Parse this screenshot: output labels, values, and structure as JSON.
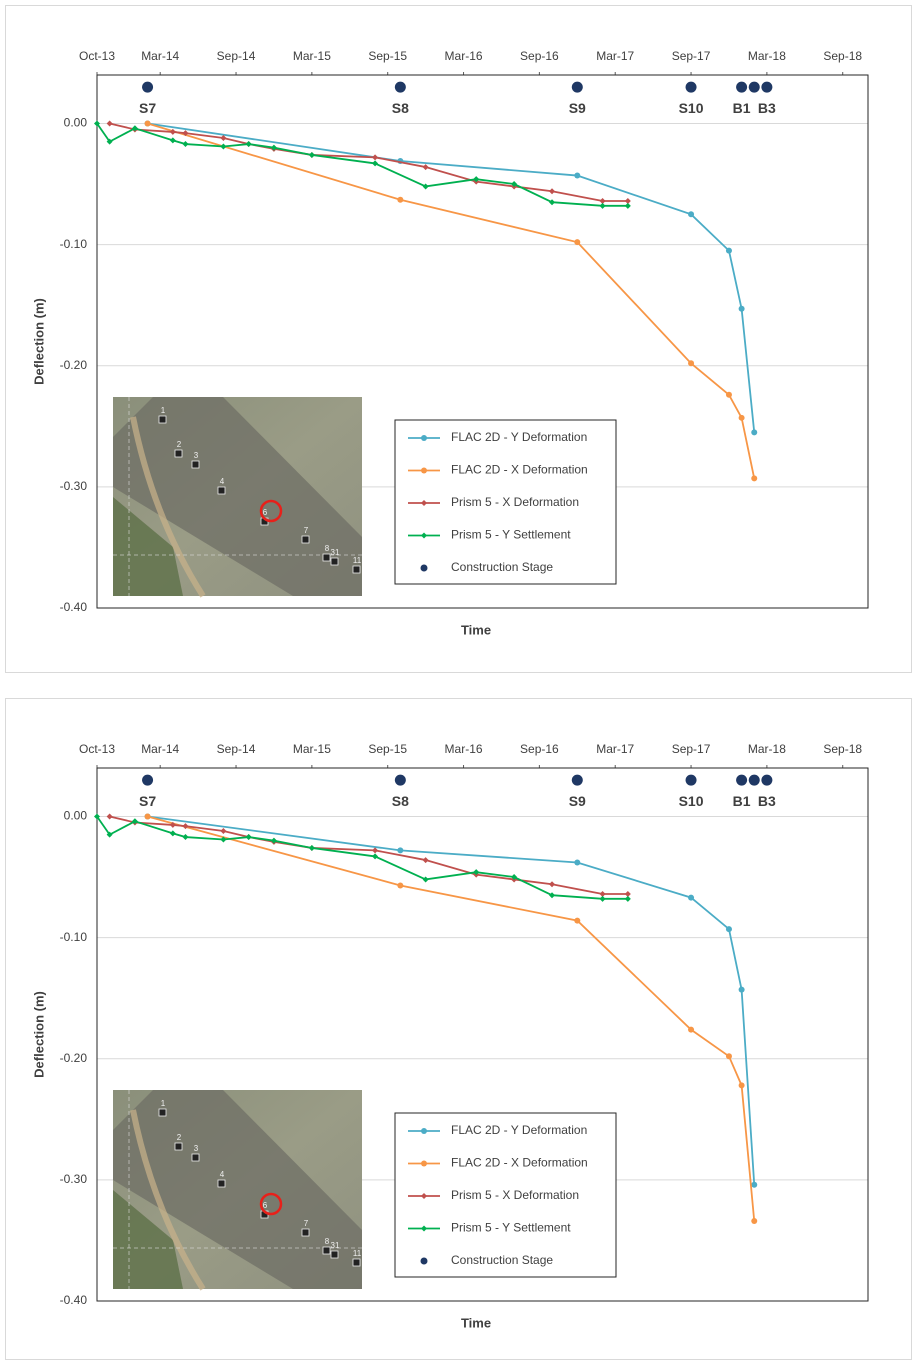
{
  "chart_data": [
    {
      "type": "line",
      "xlabel": "Time",
      "ylabel": "Deflection (m)",
      "xlim": [
        "2013-10",
        "2018-11"
      ],
      "xticks": [
        {
          "value": "2013-10",
          "label": "Oct-13"
        },
        {
          "value": "2014-03",
          "label": "Mar-14"
        },
        {
          "value": "2014-09",
          "label": "Sep-14"
        },
        {
          "value": "2015-03",
          "label": "Mar-15"
        },
        {
          "value": "2015-09",
          "label": "Sep-15"
        },
        {
          "value": "2016-03",
          "label": "Mar-16"
        },
        {
          "value": "2016-09",
          "label": "Sep-16"
        },
        {
          "value": "2017-03",
          "label": "Mar-17"
        },
        {
          "value": "2017-09",
          "label": "Sep-17"
        },
        {
          "value": "2018-03",
          "label": "Mar-18"
        },
        {
          "value": "2018-09",
          "label": "Sep-18"
        }
      ],
      "ylim": [
        -0.4,
        0.04
      ],
      "yticks": [
        {
          "value": 0,
          "label": "0.00"
        },
        {
          "value": -0.1,
          "label": "-0.10"
        },
        {
          "value": -0.2,
          "label": "-0.20"
        },
        {
          "value": -0.3,
          "label": "-0.30"
        },
        {
          "value": -0.4,
          "label": "-0.40"
        }
      ],
      "grid": true,
      "annotations": [
        "1",
        "2",
        "3",
        "4",
        "6",
        "7",
        "8",
        "31",
        "11"
      ],
      "series": [
        {
          "name": "FLAC 2D - Y Deformation",
          "color": "#4bacc6",
          "marker": "circle",
          "x": [
            "2014-02",
            "2015-10",
            "2016-12",
            "2017-09",
            "2017-12",
            "2018-01",
            "2018-02"
          ],
          "values": [
            0,
            -0.031,
            -0.043,
            -0.075,
            -0.105,
            -0.153,
            -0.255
          ]
        },
        {
          "name": "FLAC 2D - X Deformation",
          "color": "#f79646",
          "marker": "circle",
          "x": [
            "2014-02",
            "2015-10",
            "2016-12",
            "2017-09",
            "2017-12",
            "2018-01",
            "2018-02"
          ],
          "values": [
            0,
            -0.063,
            -0.098,
            -0.198,
            -0.224,
            -0.243,
            -0.293
          ]
        },
        {
          "name": "Prism 5 - X Deformation",
          "color": "#c0504d",
          "marker": "diamond",
          "x": [
            "2013-11",
            "2014-01",
            "2014-04",
            "2014-05",
            "2014-08",
            "2014-10",
            "2014-12",
            "2015-03",
            "2015-08",
            "2015-12",
            "2016-04",
            "2016-07",
            "2016-10",
            "2017-02",
            "2017-04"
          ],
          "values": [
            0,
            -0.005,
            -0.007,
            -0.008,
            -0.012,
            -0.017,
            -0.021,
            -0.026,
            -0.028,
            -0.036,
            -0.048,
            -0.052,
            -0.056,
            -0.064,
            -0.064
          ]
        },
        {
          "name": "Prism 5 - Y Settlement",
          "color": "#00b050",
          "marker": "diamond",
          "x": [
            "2013-10",
            "2013-11",
            "2014-01",
            "2014-04",
            "2014-05",
            "2014-08",
            "2014-10",
            "2014-12",
            "2015-03",
            "2015-08",
            "2015-12",
            "2016-04",
            "2016-07",
            "2016-10",
            "2017-02",
            "2017-04"
          ],
          "values": [
            0,
            -0.015,
            -0.004,
            -0.014,
            -0.017,
            -0.019,
            -0.017,
            -0.02,
            -0.026,
            -0.033,
            -0.052,
            -0.046,
            -0.05,
            -0.065,
            -0.068,
            -0.068
          ]
        },
        {
          "name": "Construction Stage",
          "color": "#1f3864",
          "marker": "circle",
          "line": false,
          "x": [
            "2014-02",
            "2015-10",
            "2016-12",
            "2017-09",
            "2018-01",
            "2018-02",
            "2018-03"
          ],
          "values": [
            0.03,
            0.03,
            0.03,
            0.03,
            0.03,
            0.03,
            0.03
          ],
          "labels": [
            "S7",
            "S8",
            "S9",
            "S10",
            "B1",
            null,
            "B3"
          ]
        }
      ]
    },
    {
      "type": "line",
      "xlabel": "Time",
      "ylabel": "Deflection (m)",
      "xlim": [
        "2013-10",
        "2018-11"
      ],
      "xticks": [
        {
          "value": "2013-10",
          "label": "Oct-13"
        },
        {
          "value": "2014-03",
          "label": "Mar-14"
        },
        {
          "value": "2014-09",
          "label": "Sep-14"
        },
        {
          "value": "2015-03",
          "label": "Mar-15"
        },
        {
          "value": "2015-09",
          "label": "Sep-15"
        },
        {
          "value": "2016-03",
          "label": "Mar-16"
        },
        {
          "value": "2016-09",
          "label": "Sep-16"
        },
        {
          "value": "2017-03",
          "label": "Mar-17"
        },
        {
          "value": "2017-09",
          "label": "Sep-17"
        },
        {
          "value": "2018-03",
          "label": "Mar-18"
        },
        {
          "value": "2018-09",
          "label": "Sep-18"
        }
      ],
      "ylim": [
        -0.4,
        0.04
      ],
      "yticks": [
        {
          "value": 0,
          "label": "0.00"
        },
        {
          "value": -0.1,
          "label": "-0.10"
        },
        {
          "value": -0.2,
          "label": "-0.20"
        },
        {
          "value": -0.3,
          "label": "-0.30"
        },
        {
          "value": -0.4,
          "label": "-0.40"
        }
      ],
      "grid": true,
      "annotations": [
        "1",
        "2",
        "3",
        "4",
        "6",
        "7",
        "8",
        "31",
        "11"
      ],
      "series": [
        {
          "name": "FLAC 2D - Y Deformation",
          "color": "#4bacc6",
          "marker": "circle",
          "x": [
            "2014-02",
            "2015-10",
            "2016-12",
            "2017-09",
            "2017-12",
            "2018-01",
            "2018-02"
          ],
          "values": [
            0,
            -0.028,
            -0.038,
            -0.067,
            -0.093,
            -0.143,
            -0.304
          ]
        },
        {
          "name": "FLAC 2D - X Deformation",
          "color": "#f79646",
          "marker": "circle",
          "x": [
            "2014-02",
            "2015-10",
            "2016-12",
            "2017-09",
            "2017-12",
            "2018-01",
            "2018-02"
          ],
          "values": [
            0,
            -0.057,
            -0.086,
            -0.176,
            -0.198,
            -0.222,
            -0.334
          ]
        },
        {
          "name": "Prism 5 - X Deformation",
          "color": "#c0504d",
          "marker": "diamond",
          "x": [
            "2013-11",
            "2014-01",
            "2014-04",
            "2014-05",
            "2014-08",
            "2014-10",
            "2014-12",
            "2015-03",
            "2015-08",
            "2015-12",
            "2016-04",
            "2016-07",
            "2016-10",
            "2017-02",
            "2017-04"
          ],
          "values": [
            0,
            -0.005,
            -0.007,
            -0.008,
            -0.012,
            -0.017,
            -0.021,
            -0.026,
            -0.028,
            -0.036,
            -0.048,
            -0.052,
            -0.056,
            -0.064,
            -0.064
          ]
        },
        {
          "name": "Prism 5 - Y Settlement",
          "color": "#00b050",
          "marker": "diamond",
          "x": [
            "2013-10",
            "2013-11",
            "2014-01",
            "2014-04",
            "2014-05",
            "2014-08",
            "2014-10",
            "2014-12",
            "2015-03",
            "2015-08",
            "2015-12",
            "2016-04",
            "2016-07",
            "2016-10",
            "2017-02",
            "2017-04"
          ],
          "values": [
            0,
            -0.015,
            -0.004,
            -0.014,
            -0.017,
            -0.019,
            -0.017,
            -0.02,
            -0.026,
            -0.033,
            -0.052,
            -0.046,
            -0.05,
            -0.065,
            -0.068,
            -0.068
          ]
        },
        {
          "name": "Construction Stage",
          "color": "#1f3864",
          "marker": "circle",
          "line": false,
          "x": [
            "2014-02",
            "2015-10",
            "2016-12",
            "2017-09",
            "2018-01",
            "2018-02",
            "2018-03"
          ],
          "values": [
            0.03,
            0.03,
            0.03,
            0.03,
            0.03,
            0.03,
            0.03
          ],
          "labels": [
            "S7",
            "S8",
            "S9",
            "S10",
            "B1",
            null,
            "B3"
          ]
        }
      ]
    }
  ]
}
